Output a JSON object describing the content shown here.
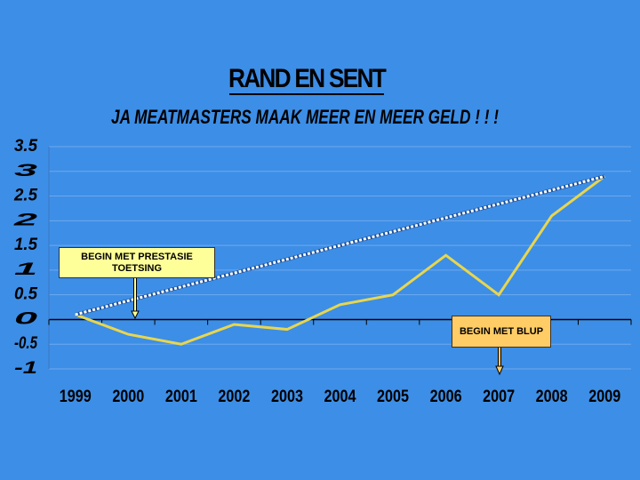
{
  "chart_data": {
    "type": "line",
    "title": "RAND EN SENT",
    "subtitle": "JA MEATMASTERS MAAK MEER EN MEER GELD ! ! !",
    "categories": [
      "1999",
      "2000",
      "2001",
      "2002",
      "2003",
      "2004",
      "2005",
      "2006",
      "2007",
      "2008",
      "2009"
    ],
    "values": [
      0.1,
      -0.3,
      -0.5,
      -0.1,
      -0.2,
      0.3,
      0.5,
      1.3,
      0.5,
      2.1,
      2.9
    ],
    "color": "#e8d64e",
    "trendline": {
      "values": [
        0.1,
        2.9
      ],
      "color": "#ffffff"
    },
    "ylim": [
      -1,
      3.5
    ],
    "yticks": [
      -1,
      -0.5,
      0,
      0.5,
      1,
      1.5,
      2,
      2.5,
      3,
      3.5
    ],
    "grid": true,
    "annotations": [
      "BEGIN MET PRESTASIE TOETSING",
      "BEGIN MET BLUP"
    ]
  }
}
